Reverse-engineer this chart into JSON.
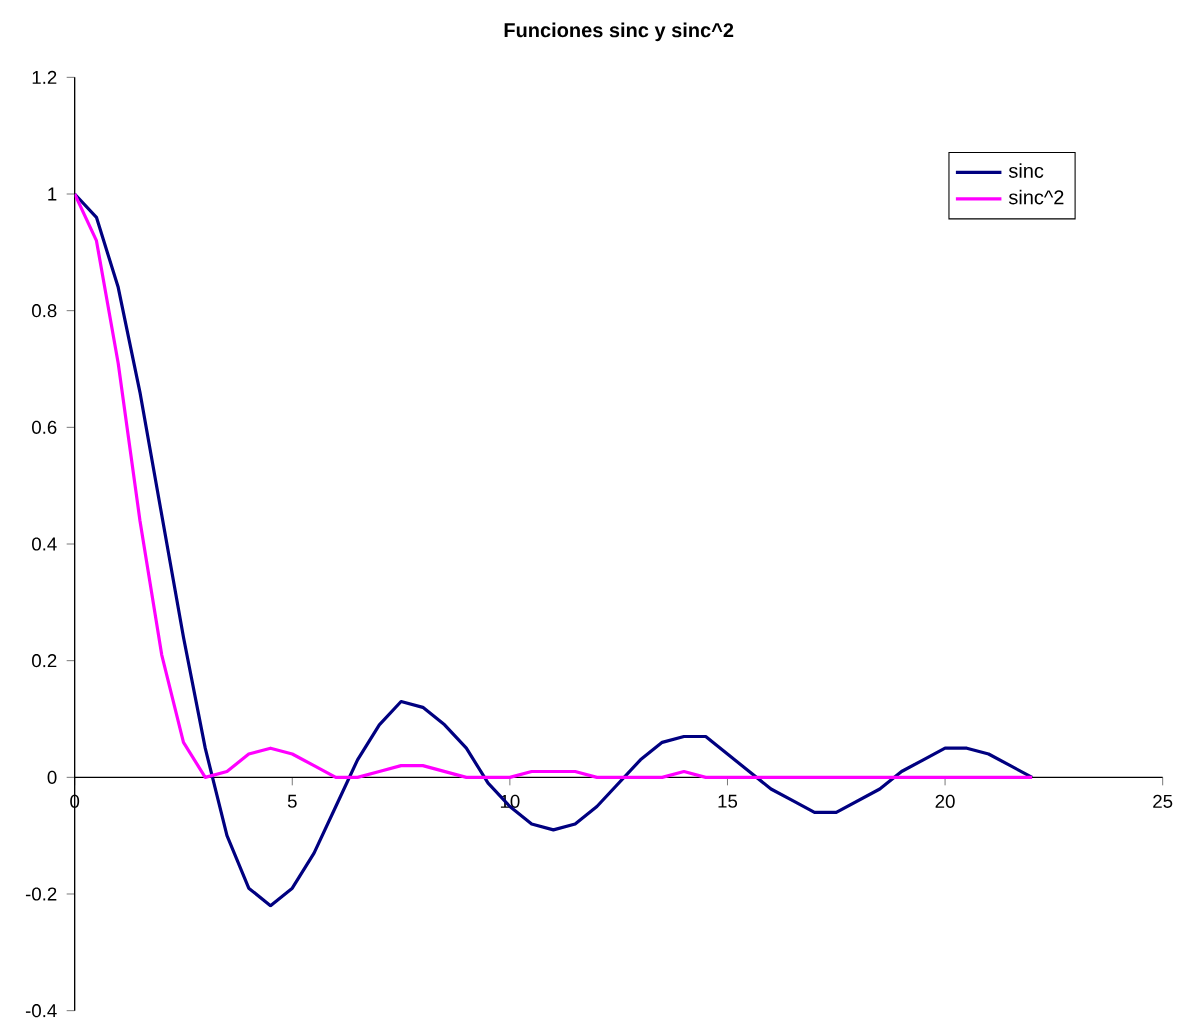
{
  "chart_data": {
    "type": "line",
    "title": "Funciones sinc y sinc^2",
    "x": [
      0,
      0.5,
      1,
      1.5,
      2,
      2.5,
      3,
      3.5,
      4,
      4.5,
      5,
      5.5,
      6,
      6.5,
      7,
      7.5,
      8,
      8.5,
      9,
      9.5,
      10,
      10.5,
      11,
      11.5,
      12,
      12.5,
      13,
      13.5,
      14,
      14.5,
      15,
      15.5,
      16,
      16.5,
      17,
      17.5,
      18,
      18.5,
      19,
      19.5,
      20,
      20.5,
      21,
      21.5,
      22
    ],
    "series": [
      {
        "name": "sinc",
        "color": "#000080",
        "values": [
          1,
          0.96,
          0.84,
          0.66,
          0.45,
          0.24,
          0.05,
          -0.1,
          -0.19,
          -0.22,
          -0.19,
          -0.13,
          -0.05,
          0.03,
          0.09,
          0.13,
          0.12,
          0.09,
          0.05,
          -0.01,
          -0.05,
          -0.08,
          -0.09,
          -0.08,
          -0.05,
          -0.01,
          0.03,
          0.06,
          0.07,
          0.07,
          0.04,
          0.01,
          -0.02,
          -0.04,
          -0.06,
          -0.06,
          -0.04,
          -0.02,
          0.01,
          0.03,
          0.05,
          0.05,
          0.04,
          0.02,
          0
        ]
      },
      {
        "name": "sinc^2",
        "color": "#ff00ff",
        "values": [
          1,
          0.92,
          0.71,
          0.44,
          0.21,
          0.06,
          0,
          0.01,
          0.04,
          0.05,
          0.04,
          0.02,
          0,
          0,
          0.01,
          0.02,
          0.02,
          0.01,
          0,
          0,
          0,
          0.01,
          0.01,
          0.01,
          0,
          0,
          0,
          0,
          0.01,
          0,
          0,
          0,
          0,
          0,
          0,
          0,
          0,
          0,
          0,
          0,
          0,
          0,
          0,
          0,
          0
        ]
      }
    ],
    "xlim": [
      0,
      25
    ],
    "xticks": [
      0,
      5,
      10,
      15,
      20,
      25
    ],
    "ylim": [
      -0.4,
      1.2
    ],
    "yticks": [
      -0.4,
      -0.2,
      0,
      0.2,
      0.4,
      0.6,
      0.8,
      1,
      1.2
    ],
    "grid": false,
    "legend": "top right",
    "marker": "none",
    "line_style": "solid"
  }
}
